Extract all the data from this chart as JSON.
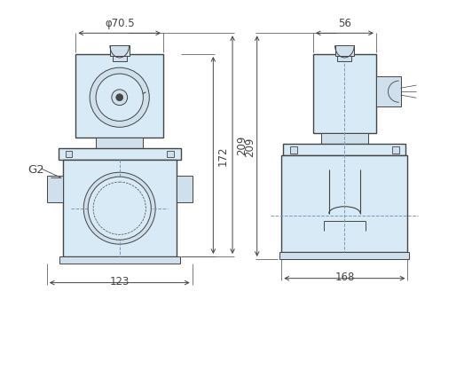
{
  "bg_color": "#ffffff",
  "body_fill": "#cfe0ec",
  "body_fill2": "#d8eaf5",
  "line_color": "#444444",
  "dim_color": "#444444",
  "dashed_color": "#7799bb",
  "dimensions": {
    "phi70_5": "φ70.5",
    "d56": "56",
    "d123": "123",
    "d168": "168",
    "d172": "172",
    "d209": "209",
    "G2": "G2"
  },
  "font_size_dim": 8.5
}
